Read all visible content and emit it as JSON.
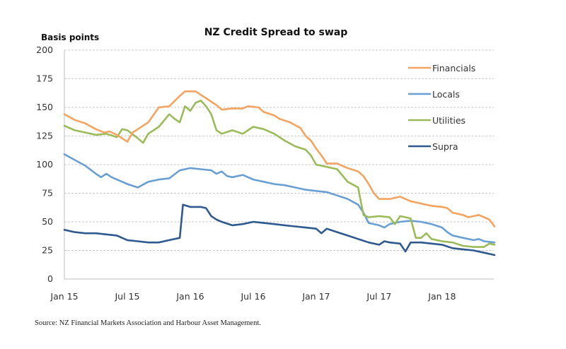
{
  "chart_data": {
    "type": "line",
    "title": "NZ Credit Spread to swap",
    "ylabel": "Basis points",
    "xlabel": "",
    "ylim": [
      0,
      200
    ],
    "yticks": [
      0,
      25,
      50,
      75,
      100,
      125,
      150,
      175,
      200
    ],
    "xlim_months": [
      0,
      41
    ],
    "xticks": [
      {
        "label": "Jan 15",
        "month": 0
      },
      {
        "label": "Jul 15",
        "month": 6
      },
      {
        "label": "Jan 16",
        "month": 12
      },
      {
        "label": "Jul 16",
        "month": 18
      },
      {
        "label": "Jan 17",
        "month": 24
      },
      {
        "label": "Jul 17",
        "month": 30
      },
      {
        "label": "Jan 18",
        "month": 36
      }
    ],
    "grid": true,
    "legend_position": "top-right",
    "x_unit": "months since Jan 2015",
    "series": [
      {
        "name": "Financials",
        "color": "#F4A460",
        "points": [
          [
            0,
            144
          ],
          [
            1,
            139
          ],
          [
            2,
            136
          ],
          [
            3,
            131
          ],
          [
            3.8,
            128
          ],
          [
            4.3,
            129
          ],
          [
            5,
            126
          ],
          [
            6,
            120
          ],
          [
            6.5,
            128
          ],
          [
            7,
            131
          ],
          [
            8,
            137
          ],
          [
            9,
            150
          ],
          [
            10,
            151
          ],
          [
            11,
            160
          ],
          [
            11.5,
            164
          ],
          [
            12.5,
            164
          ],
          [
            13.5,
            158
          ],
          [
            14.5,
            152
          ],
          [
            15,
            148
          ],
          [
            16,
            149
          ],
          [
            17,
            149
          ],
          [
            17.5,
            151
          ],
          [
            18.5,
            150
          ],
          [
            19,
            146
          ],
          [
            20,
            143
          ],
          [
            20.5,
            140
          ],
          [
            21.5,
            137
          ],
          [
            22.5,
            132
          ],
          [
            23,
            125
          ],
          [
            23.5,
            121
          ],
          [
            24,
            114
          ],
          [
            24.5,
            108
          ],
          [
            25,
            101
          ],
          [
            26,
            101
          ],
          [
            27,
            97
          ],
          [
            28,
            94
          ],
          [
            28.5,
            90
          ],
          [
            29,
            83
          ],
          [
            29.5,
            75
          ],
          [
            30,
            70
          ],
          [
            31,
            70
          ],
          [
            32,
            72
          ],
          [
            33,
            68
          ],
          [
            34,
            66
          ],
          [
            35,
            64
          ],
          [
            36,
            63
          ],
          [
            36.5,
            62
          ],
          [
            37,
            58
          ],
          [
            38,
            56
          ],
          [
            38.5,
            54
          ],
          [
            39.5,
            56
          ],
          [
            40,
            54
          ],
          [
            40.5,
            52
          ],
          [
            41,
            46
          ]
        ]
      },
      {
        "name": "Locals",
        "color": "#6A9FD4",
        "points": [
          [
            0,
            109
          ],
          [
            1,
            104
          ],
          [
            2,
            99
          ],
          [
            3,
            92
          ],
          [
            3.5,
            89
          ],
          [
            4,
            92
          ],
          [
            4.5,
            89
          ],
          [
            5,
            87
          ],
          [
            6,
            83
          ],
          [
            7,
            80
          ],
          [
            8,
            85
          ],
          [
            9,
            87
          ],
          [
            10,
            88
          ],
          [
            11,
            95
          ],
          [
            12,
            97
          ],
          [
            13,
            96
          ],
          [
            14,
            95
          ],
          [
            14.5,
            92
          ],
          [
            15,
            94
          ],
          [
            15.5,
            90
          ],
          [
            16,
            89
          ],
          [
            17,
            91
          ],
          [
            18,
            87
          ],
          [
            19,
            85
          ],
          [
            20,
            83
          ],
          [
            21,
            82
          ],
          [
            22,
            80
          ],
          [
            23,
            78
          ],
          [
            24,
            77
          ],
          [
            25,
            76
          ],
          [
            26,
            73
          ],
          [
            27,
            70
          ],
          [
            28,
            65
          ],
          [
            28.5,
            58
          ],
          [
            29,
            49
          ],
          [
            30,
            47
          ],
          [
            30.5,
            45
          ],
          [
            31,
            48
          ],
          [
            32,
            50
          ],
          [
            33,
            51
          ],
          [
            34,
            50
          ],
          [
            35,
            48
          ],
          [
            36,
            45
          ],
          [
            36.5,
            41
          ],
          [
            37,
            38
          ],
          [
            38,
            36
          ],
          [
            39,
            34
          ],
          [
            39.5,
            35
          ],
          [
            40,
            33
          ],
          [
            41,
            32
          ]
        ]
      },
      {
        "name": "Utilities",
        "color": "#9BBB59",
        "points": [
          [
            0,
            134
          ],
          [
            1,
            130
          ],
          [
            2,
            128
          ],
          [
            3,
            126
          ],
          [
            4,
            127
          ],
          [
            5,
            124
          ],
          [
            5.5,
            131
          ],
          [
            6,
            130
          ],
          [
            7,
            123
          ],
          [
            7.5,
            119
          ],
          [
            8,
            127
          ],
          [
            9,
            133
          ],
          [
            10,
            144
          ],
          [
            10.5,
            140
          ],
          [
            11,
            137
          ],
          [
            11.5,
            151
          ],
          [
            12,
            147
          ],
          [
            12.5,
            154
          ],
          [
            13,
            156
          ],
          [
            13.5,
            151
          ],
          [
            14,
            144
          ],
          [
            14.5,
            130
          ],
          [
            15,
            127
          ],
          [
            16,
            130
          ],
          [
            17,
            127
          ],
          [
            18,
            133
          ],
          [
            19,
            131
          ],
          [
            20,
            127
          ],
          [
            21,
            121
          ],
          [
            22,
            116
          ],
          [
            23,
            113
          ],
          [
            23.5,
            108
          ],
          [
            24,
            100
          ],
          [
            25,
            98
          ],
          [
            26,
            96
          ],
          [
            27,
            85
          ],
          [
            28,
            80
          ],
          [
            28.5,
            56
          ],
          [
            29,
            54
          ],
          [
            30,
            55
          ],
          [
            31,
            54
          ],
          [
            31.5,
            48
          ],
          [
            32,
            55
          ],
          [
            33,
            53
          ],
          [
            33.5,
            36
          ],
          [
            34,
            36
          ],
          [
            34.5,
            40
          ],
          [
            35,
            35
          ],
          [
            36,
            33
          ],
          [
            37,
            32
          ],
          [
            38,
            29
          ],
          [
            39,
            28
          ],
          [
            40,
            28
          ],
          [
            40.5,
            31
          ],
          [
            41,
            30
          ]
        ]
      },
      {
        "name": "Supra",
        "color": "#2E5A8F",
        "points": [
          [
            0,
            43
          ],
          [
            1,
            41
          ],
          [
            2,
            40
          ],
          [
            3,
            40
          ],
          [
            4,
            39
          ],
          [
            5,
            38
          ],
          [
            6,
            34
          ],
          [
            7,
            33
          ],
          [
            8,
            32
          ],
          [
            9,
            32
          ],
          [
            10,
            34
          ],
          [
            11,
            36
          ],
          [
            11.3,
            65
          ],
          [
            12,
            63
          ],
          [
            13,
            63
          ],
          [
            13.5,
            62
          ],
          [
            14,
            55
          ],
          [
            14.5,
            52
          ],
          [
            15,
            50
          ],
          [
            16,
            47
          ],
          [
            17,
            48
          ],
          [
            18,
            50
          ],
          [
            19,
            49
          ],
          [
            20,
            48
          ],
          [
            21,
            47
          ],
          [
            22,
            46
          ],
          [
            23,
            45
          ],
          [
            24,
            44
          ],
          [
            24.5,
            40
          ],
          [
            25,
            44
          ],
          [
            26,
            41
          ],
          [
            27,
            38
          ],
          [
            28,
            35
          ],
          [
            29,
            32
          ],
          [
            30,
            30
          ],
          [
            30.5,
            33
          ],
          [
            31,
            32
          ],
          [
            32,
            31
          ],
          [
            32.5,
            24
          ],
          [
            33,
            32
          ],
          [
            34,
            32
          ],
          [
            35,
            31
          ],
          [
            36,
            30
          ],
          [
            37,
            27
          ],
          [
            38,
            26
          ],
          [
            39,
            25
          ],
          [
            40,
            23
          ],
          [
            41,
            21
          ]
        ]
      }
    ]
  },
  "source": "Source: NZ Financial Markets Association and Harbour Asset Management."
}
